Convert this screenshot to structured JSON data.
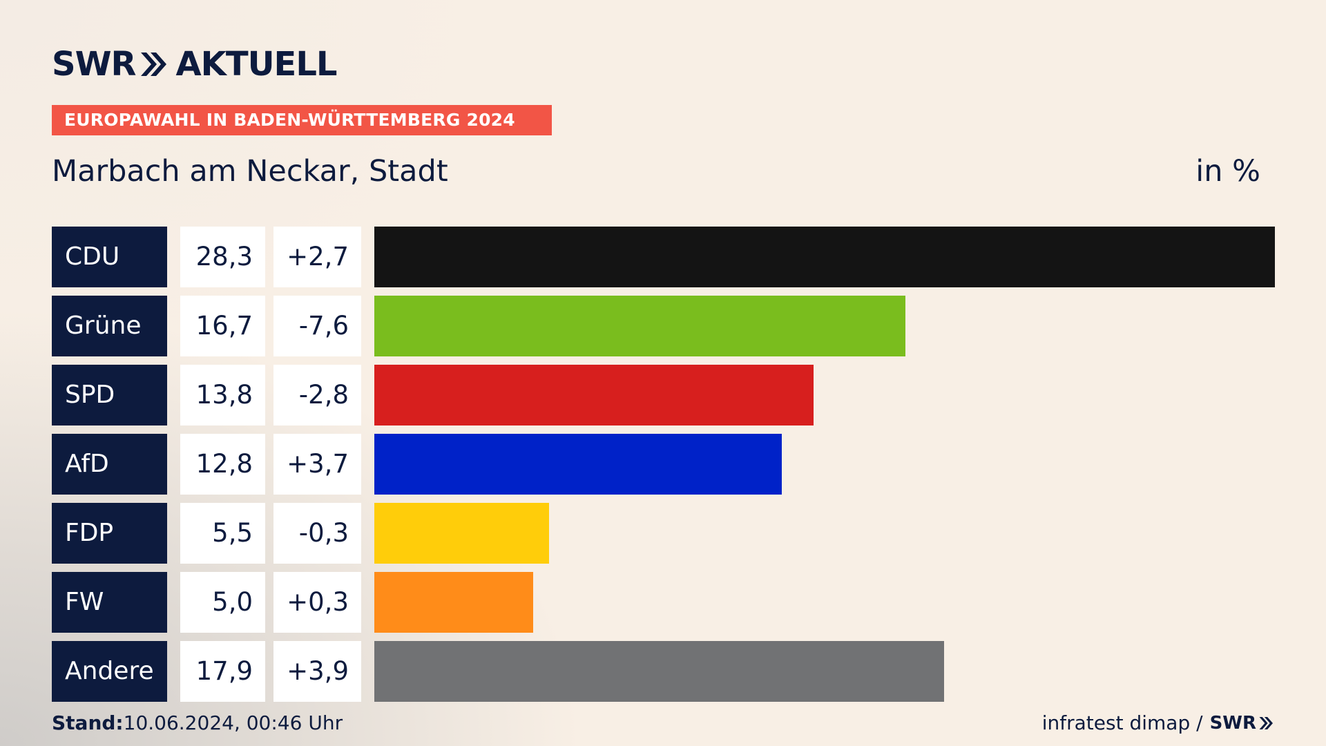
{
  "header": {
    "logo_text": "SWR",
    "logo_suffix": "AKTUELL",
    "kicker": "EUROPAWAHL IN BADEN-WÜRTTEMBERG 2024",
    "title": "Marbach am Neckar, Stadt",
    "unit": "in %"
  },
  "chart_data": {
    "type": "bar",
    "orientation": "horizontal",
    "title": "Marbach am Neckar, Stadt",
    "unit": "in %",
    "categories": [
      "CDU",
      "Grüne",
      "SPD",
      "AfD",
      "FDP",
      "FW",
      "Andere"
    ],
    "values": [
      28.3,
      16.7,
      13.8,
      12.8,
      5.5,
      5.0,
      17.9
    ],
    "value_labels": [
      "28,3",
      "16,7",
      "13,8",
      "12,8",
      "5,5",
      "5,0",
      "17,9"
    ],
    "diff_labels": [
      "+2,7",
      "-7,6",
      "-2,8",
      "+3,7",
      "-0,3",
      "+0,3",
      "+3,9"
    ],
    "colors": [
      "#141414",
      "#7abd1e",
      "#d71f1e",
      "#0022c8",
      "#ffcd0a",
      "#ff8c19",
      "#717274"
    ],
    "xlim": [
      0,
      28.3
    ],
    "grid": false,
    "legend": "none"
  },
  "footer": {
    "stand_label": "Stand:",
    "stand_value": "10.06.2024, 00:46 Uhr",
    "source": "infratest dimap /",
    "source_logo": "SWR"
  }
}
